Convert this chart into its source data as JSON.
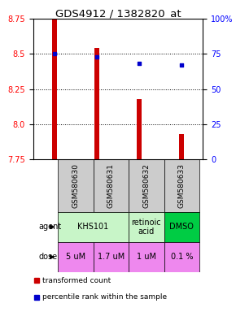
{
  "title": "GDS4912 / 1382820_at",
  "samples": [
    "GSM580630",
    "GSM580631",
    "GSM580632",
    "GSM580633"
  ],
  "bar_values": [
    8.75,
    8.54,
    8.18,
    7.93
  ],
  "percentile_values": [
    75,
    73,
    68,
    67
  ],
  "ylim_left": [
    7.75,
    8.75
  ],
  "ylim_right": [
    0,
    100
  ],
  "yticks_left": [
    7.75,
    8.0,
    8.25,
    8.5,
    8.75
  ],
  "yticks_right": [
    0,
    25,
    50,
    75,
    100
  ],
  "bar_color": "#cc0000",
  "marker_color": "#0000cc",
  "bar_width": 0.12,
  "agent_groups": [
    {
      "c0": 0,
      "c1": 2,
      "label": "KHS101",
      "color": "#c8f5c8"
    },
    {
      "c0": 2,
      "c1": 3,
      "label": "retinoic\nacid",
      "color": "#c8f5c8"
    },
    {
      "c0": 3,
      "c1": 4,
      "label": "DMSO",
      "color": "#00cc44"
    }
  ],
  "dose_labels": [
    "5 uM",
    "1.7 uM",
    "1 uM",
    "0.1 %"
  ],
  "dose_color": "#ee88ee",
  "sample_bg_color": "#cccccc",
  "title_fontsize": 9.5,
  "tick_fontsize": 7,
  "sample_fontsize": 6.5,
  "table_fontsize": 7,
  "legend_fontsize": 6.5,
  "marker_size": 12
}
